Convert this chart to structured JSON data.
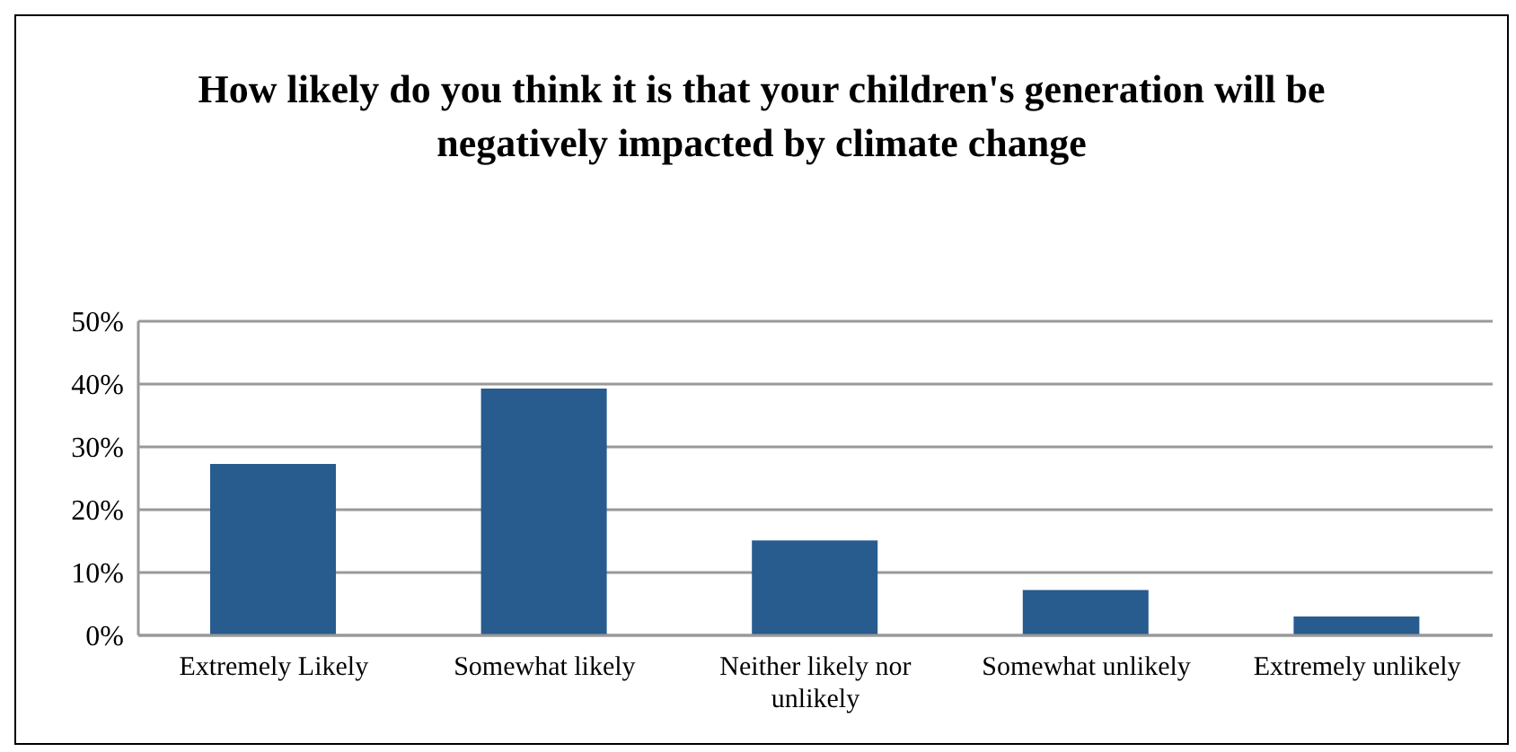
{
  "chart_data": {
    "type": "bar",
    "title": "How likely do you think it is that your children's generation will be negatively impacted by climate change",
    "categories": [
      "Extremely Likely",
      "Somewhat likely",
      "Neither likely nor unlikely",
      "Somewhat unlikely",
      "Extremely unlikely"
    ],
    "values": [
      27.3,
      39.3,
      15.1,
      7.2,
      3.0
    ],
    "color": "#285b8e",
    "ylim": [
      0,
      50
    ],
    "yticks": [
      {
        "value": 0,
        "label": "0%"
      },
      {
        "value": 10,
        "label": "10%"
      },
      {
        "value": 20,
        "label": "20%"
      },
      {
        "value": 30,
        "label": "30%"
      },
      {
        "value": 40,
        "label": "40%"
      },
      {
        "value": 50,
        "label": "50%"
      }
    ],
    "grid": "y"
  }
}
